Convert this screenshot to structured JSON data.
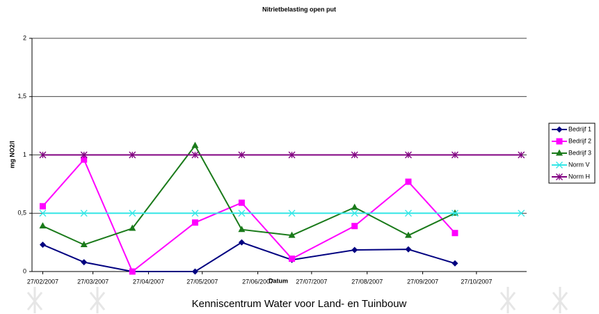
{
  "chart_data": {
    "type": "line",
    "title": "Nitrietbelasting open put",
    "x_label": "Datum",
    "y_label": "mg NO2/l",
    "x": [
      "27/02/2007",
      "22/03/2007",
      "18/04/2007",
      "23/05/2007",
      "18/06/2007",
      "16/07/2007",
      "20/08/2007",
      "19/09/2007",
      "15/10/2007",
      "21/11/2007"
    ],
    "series": [
      {
        "name": "Bedrijf 1",
        "color": "#000080",
        "marker": "diamond",
        "values": [
          0.23,
          0.08,
          0,
          0,
          0.25,
          0.1,
          0.185,
          0.19,
          0.07,
          null
        ]
      },
      {
        "name": "Bedrijf 2",
        "color": "#ff00ff",
        "marker": "square",
        "values": [
          0.56,
          0.96,
          0,
          0.42,
          0.59,
          0.11,
          0.39,
          0.77,
          0.33,
          null
        ]
      },
      {
        "name": "Bedrijf 3",
        "color": "#1a7a1a",
        "marker": "triangle",
        "values": [
          0.39,
          0.23,
          0.37,
          1.08,
          0.36,
          0.31,
          0.55,
          0.31,
          0.5,
          null
        ]
      },
      {
        "name": "Norm V",
        "color": "#33e6e6",
        "marker": "x",
        "values": [
          0.5,
          0.5,
          0.5,
          0.5,
          0.5,
          0.5,
          0.5,
          0.5,
          0.5,
          0.5
        ]
      },
      {
        "name": "Norm H",
        "color": "#800080",
        "marker": "star",
        "values": [
          1,
          1,
          1,
          1,
          1,
          1,
          1,
          1,
          1,
          1
        ]
      }
    ],
    "xlim": [
      "21/02/2007",
      "24/11/2007"
    ],
    "xticks": [
      "27/02/2007",
      "27/03/2007",
      "27/04/2007",
      "27/05/2007",
      "27/06/2007",
      "27/07/2007",
      "27/08/2007",
      "27/09/2007",
      "27/10/2007"
    ],
    "ylim": [
      0,
      2
    ],
    "yticks": [
      0,
      {
        "value": 0.5,
        "label": "0,5"
      },
      1,
      {
        "value": 1.5,
        "label": "1,5"
      },
      2
    ],
    "grid": true,
    "legend": "right"
  },
  "footer": "Kenniscentrum Water voor Land- en Tuinbouw"
}
